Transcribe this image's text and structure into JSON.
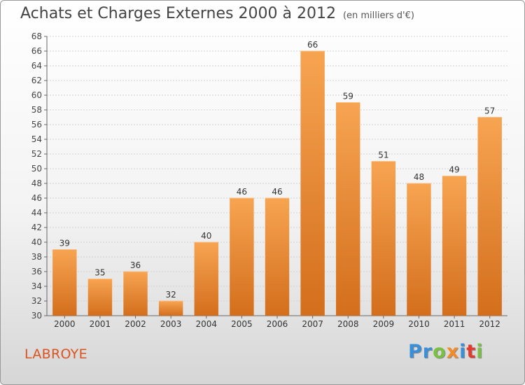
{
  "header": {
    "title": "Achats et Charges Externes 2000 à 2012",
    "unit": "(en milliers d'€)"
  },
  "footer": {
    "commune": "LABROYE",
    "logo_letters": [
      {
        "char": "P",
        "color": "#3b8fd6"
      },
      {
        "char": "r",
        "color": "#3b8fd6"
      },
      {
        "char": "o",
        "color": "#7ac143"
      },
      {
        "char": "x",
        "color": "#f28c28"
      },
      {
        "char": "i",
        "color": "#3b8fd6"
      },
      {
        "char": "t",
        "color": "#e23a2f"
      },
      {
        "char": "i",
        "color": "#7ac143"
      }
    ]
  },
  "colors": {
    "bar_top": "#f7a451",
    "bar_bottom": "#d36e1c",
    "commune": "#d9541e"
  },
  "chart_data": {
    "type": "bar",
    "categories": [
      "2000",
      "2001",
      "2002",
      "2003",
      "2004",
      "2005",
      "2006",
      "2007",
      "2008",
      "2009",
      "2010",
      "2011",
      "2012"
    ],
    "values": [
      39,
      35,
      36,
      32,
      40,
      46,
      46,
      66,
      59,
      51,
      48,
      49,
      57
    ],
    "title": "Achats et Charges Externes 2000 à 2012",
    "ylim": [
      30,
      68
    ],
    "yticks": [
      30,
      32,
      34,
      36,
      38,
      40,
      42,
      44,
      46,
      48,
      50,
      52,
      54,
      56,
      58,
      60,
      62,
      64,
      66,
      68
    ],
    "grid": true
  }
}
